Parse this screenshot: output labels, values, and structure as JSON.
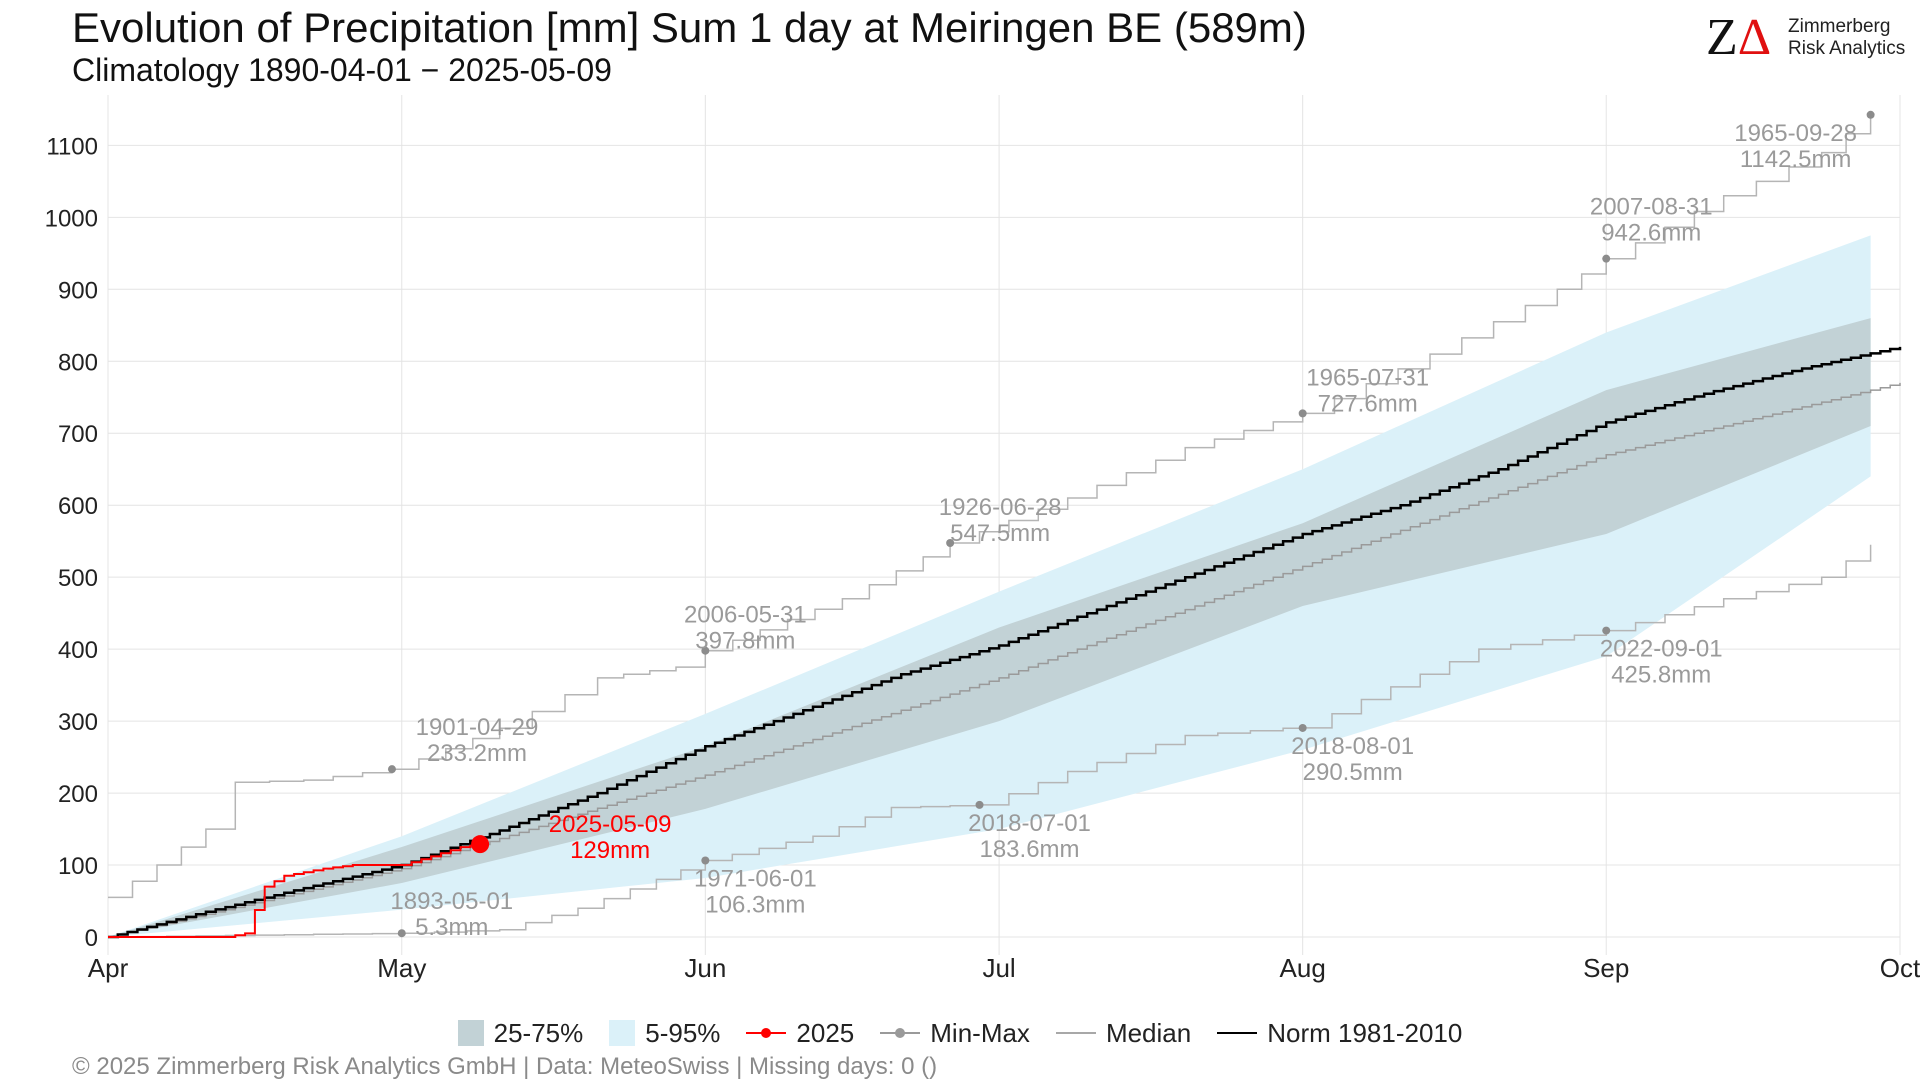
{
  "header": {
    "title": "Evolution of Precipitation [mm] Sum 1 day at Meiringen  BE (589m)",
    "subtitle": "Climatology 1890-04-01 − 2025-05-09"
  },
  "logo": {
    "mark_z": "Z",
    "mark_delta": "Δ",
    "line1": "Zimmerberg",
    "line2": "Risk Analytics"
  },
  "legend": {
    "iqr": "25-75%",
    "p5_95": "5-95%",
    "current": "2025",
    "minmax": "Min-Max",
    "median": "Median",
    "norm": "Norm 1981-2010"
  },
  "footer": "©  2025 Zimmerberg Risk Analytics GmbH | Data: MeteoSwiss | Missing days: 0 ()",
  "colors": {
    "current": "#ff0000",
    "norm": "#000000",
    "median": "#9a9a9a",
    "minmax": "#b5b5b5",
    "iqr": "#c2d2d6",
    "p5_95": "#dbf1f9",
    "annotation": "#9a9a9a"
  },
  "chart_data": {
    "type": "line",
    "x_axis": {
      "labels": [
        "Apr",
        "May",
        "Jun",
        "Jul",
        "Aug",
        "Sep",
        "Oct"
      ],
      "range_days": [
        0,
        183
      ]
    },
    "y_axis": {
      "ticks": [
        0,
        100,
        200,
        300,
        400,
        500,
        600,
        700,
        800,
        900,
        1000,
        1100
      ],
      "range": [
        -25,
        1170
      ]
    },
    "grid": true,
    "legend_position": "bottom",
    "bands": {
      "p5_95": {
        "day": [
          0,
          30,
          61,
          91,
          122,
          153,
          180
        ],
        "low": [
          0,
          38,
          82,
          150,
          260,
          390,
          640
        ],
        "high": [
          0,
          140,
          310,
          480,
          650,
          840,
          975
        ]
      },
      "p25_75": {
        "day": [
          0,
          30,
          61,
          91,
          122,
          153,
          180
        ],
        "low": [
          0,
          75,
          178,
          300,
          460,
          560,
          710
        ],
        "high": [
          0,
          125,
          265,
          430,
          575,
          760,
          860
        ]
      }
    },
    "series": [
      {
        "name": "Norm 1981-2010",
        "day": [
          0,
          10,
          20,
          30,
          40,
          50,
          61,
          71,
          81,
          91,
          101,
          112,
          122,
          132,
          142,
          153,
          163,
          173,
          183
        ],
        "value": [
          0,
          35,
          68,
          100,
          148,
          200,
          265,
          315,
          365,
          405,
          455,
          510,
          560,
          600,
          650,
          715,
          755,
          790,
          820
        ]
      },
      {
        "name": "Median",
        "day": [
          0,
          30,
          61,
          91,
          122,
          153,
          183
        ],
        "value": [
          0,
          95,
          225,
          360,
          515,
          670,
          770
        ]
      },
      {
        "name": "2025",
        "day": [
          0,
          12,
          14,
          16,
          18,
          22,
          25,
          28,
          30,
          33,
          36,
          38
        ],
        "value": [
          0,
          0,
          5,
          70,
          85,
          95,
          100,
          100,
          100,
          112,
          125,
          129
        ]
      },
      {
        "name": "Max",
        "day": [
          0,
          5,
          10,
          13,
          20,
          29,
          40,
          50,
          58,
          61,
          75,
          86,
          98,
          110,
          122,
          135,
          148,
          153,
          165,
          175,
          180
        ],
        "value": [
          55,
          100,
          150,
          215,
          218,
          233.2,
          290,
          360,
          375,
          397.8,
          470,
          547.5,
          610,
          680,
          727.6,
          810,
          900,
          942.6,
          1030,
          1090,
          1142.5
        ]
      },
      {
        "name": "Min",
        "day": [
          0,
          30,
          40,
          48,
          56,
          61,
          72,
          80,
          89,
          98,
          110,
          120,
          122,
          128,
          140,
          153,
          165,
          175,
          180
        ],
        "value": [
          0,
          5.3,
          10,
          40,
          80,
          106.3,
          140,
          180,
          183.6,
          230,
          280,
          290,
          290.5,
          330,
          400,
          425.8,
          470,
          500,
          545
        ]
      }
    ],
    "annotations": [
      {
        "date": "1901-04-29",
        "value_label": "233.2mm",
        "day": 29,
        "value": 233.2
      },
      {
        "date": "2006-05-31",
        "value_label": "397.8mm",
        "day": 61,
        "value": 397.8
      },
      {
        "date": "1926-06-28",
        "value_label": "547.5mm",
        "day": 86,
        "value": 547.5
      },
      {
        "date": "1965-07-31",
        "value_label": "727.6mm",
        "day": 122,
        "value": 727.6
      },
      {
        "date": "2007-08-31",
        "value_label": "942.6mm",
        "day": 153,
        "value": 942.6
      },
      {
        "date": "1965-09-28",
        "value_label": "1142.5mm",
        "day": 180,
        "value": 1142.5
      },
      {
        "date": "1893-05-01",
        "value_label": "5.3mm",
        "day": 30,
        "value": 5.3
      },
      {
        "date": "1971-06-01",
        "value_label": "106.3mm",
        "day": 61,
        "value": 106.3
      },
      {
        "date": "2018-07-01",
        "value_label": "183.6mm",
        "day": 89,
        "value": 183.6
      },
      {
        "date": "2018-08-01",
        "value_label": "290.5mm",
        "day": 122,
        "value": 290.5
      },
      {
        "date": "2022-09-01",
        "value_label": "425.8mm",
        "day": 153,
        "value": 425.8
      },
      {
        "date": "2025-05-09",
        "value_label": "129mm",
        "day": 38,
        "value": 129
      }
    ]
  }
}
